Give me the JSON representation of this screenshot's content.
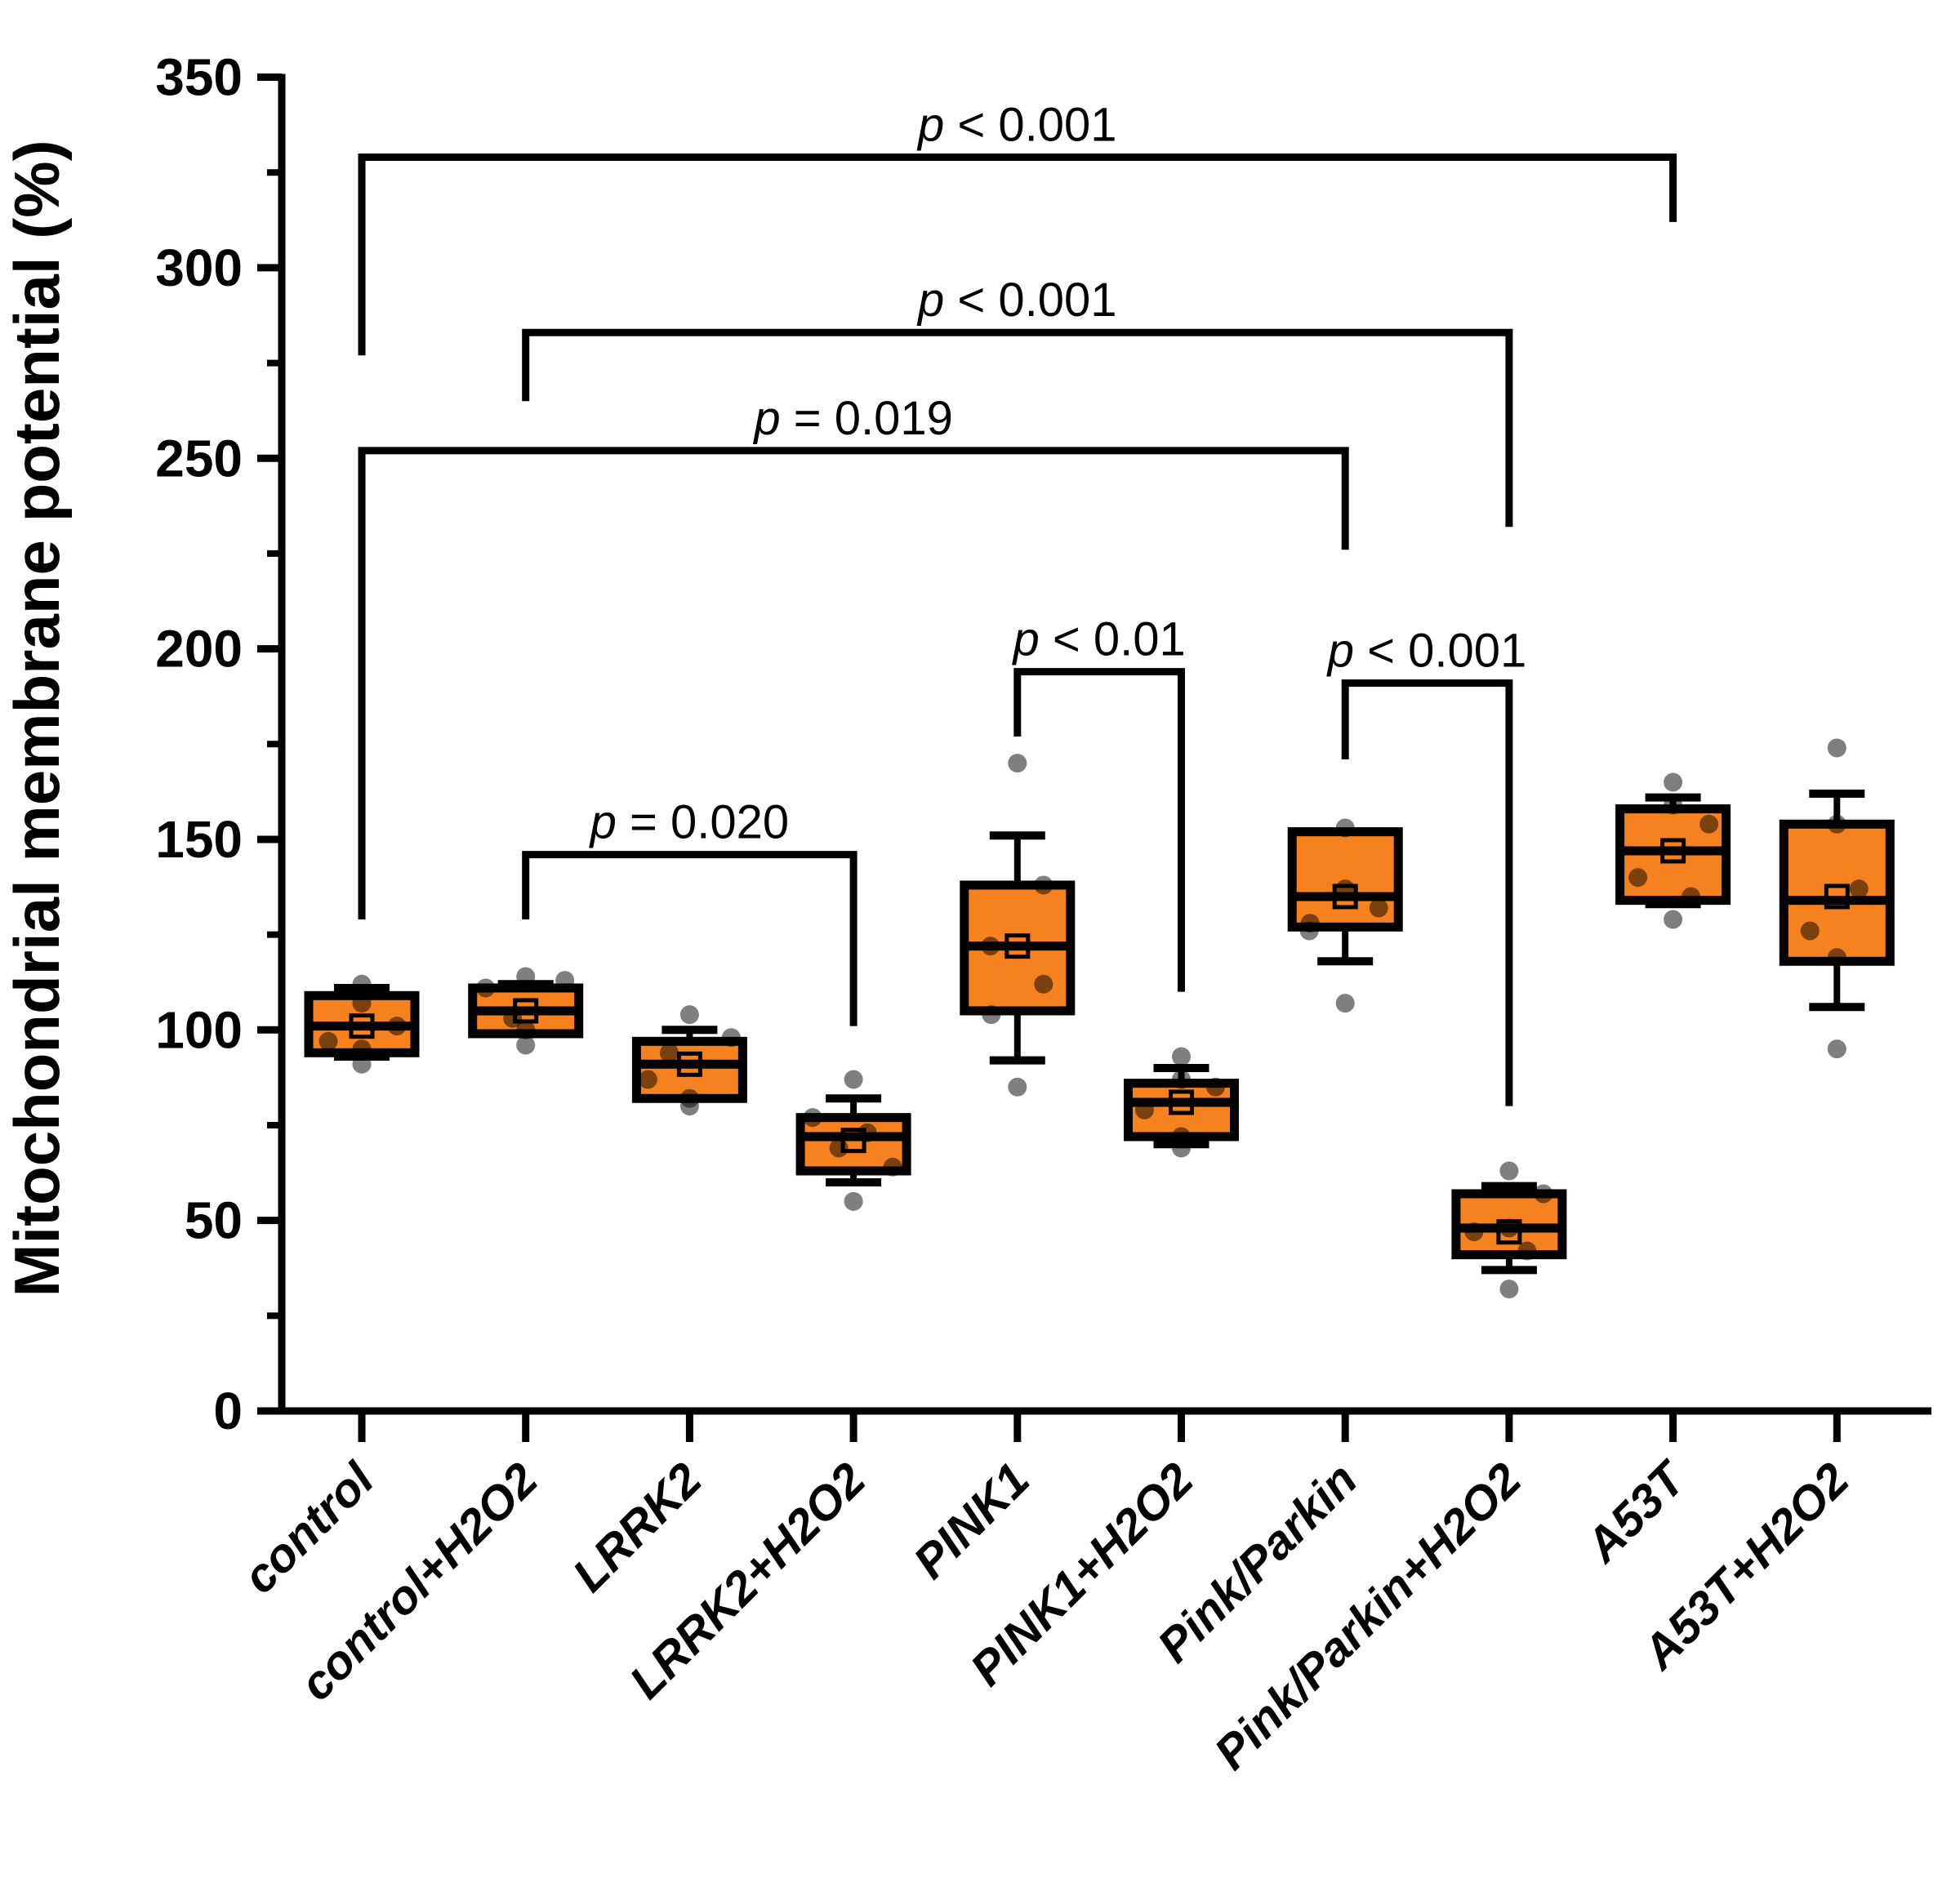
{
  "chart_data": {
    "type": "box",
    "title": "",
    "xlabel": "",
    "ylabel": "Mitochondrial membrane potential (%)",
    "ylim": [
      0,
      350
    ],
    "ytick_major_step": 50,
    "ytick_minor_step": 25,
    "ytick_labels": [
      "0",
      "50",
      "100",
      "150",
      "200",
      "250",
      "300",
      "350"
    ],
    "grid": false,
    "legend": "none",
    "categories": [
      "control",
      "control+H2O2",
      "LRRK2",
      "LRRK2+H2O2",
      "PINK1",
      "PINK1+H2O2",
      "Pink/Parkin",
      "Pink/Parkin+H2O2",
      "A53T",
      "A53T+H2O2"
    ],
    "colors": {
      "box_fill": "#F5821F",
      "line": "#000000",
      "point": "#000000",
      "point_opacity": 0.5,
      "background": "#FFFFFF"
    },
    "boxes": [
      {
        "category": "control",
        "whisker_low": 93,
        "q1": 94,
        "median": 101,
        "q3": 109,
        "whisker_high": 111,
        "mean": 101,
        "points": [
          {
            "v": 112,
            "dx": 0
          },
          {
            "v": 107,
            "dx": 0
          },
          {
            "v": 101,
            "dx": 43
          },
          {
            "v": 97,
            "dx": -41
          },
          {
            "v": 95,
            "dx": 0
          },
          {
            "v": 91,
            "dx": 0
          }
        ]
      },
      {
        "category": "control+H2O2",
        "whisker_low": 99,
        "q1": 99,
        "median": 105,
        "q3": 111,
        "whisker_high": 112,
        "mean": 105,
        "points": [
          {
            "v": 114,
            "dx": 0
          },
          {
            "v": 113,
            "dx": 48
          },
          {
            "v": 111,
            "dx": -49
          },
          {
            "v": 103,
            "dx": -16
          },
          {
            "v": 100,
            "dx": 0
          },
          {
            "v": 96,
            "dx": 0
          }
        ]
      },
      {
        "category": "LRRK2",
        "whisker_low": 82,
        "q1": 82,
        "median": 91,
        "q3": 97,
        "whisker_high": 100,
        "mean": 91,
        "points": [
          {
            "v": 104,
            "dx": 0
          },
          {
            "v": 98,
            "dx": 51
          },
          {
            "v": 94,
            "dx": -25
          },
          {
            "v": 87,
            "dx": -51
          },
          {
            "v": 82,
            "dx": 0
          },
          {
            "v": 80,
            "dx": 0
          }
        ]
      },
      {
        "category": "LRRK2+H2O2",
        "whisker_low": 60,
        "q1": 63,
        "median": 72,
        "q3": 77,
        "whisker_high": 82,
        "mean": 71,
        "points": [
          {
            "v": 87,
            "dx": 0
          },
          {
            "v": 77,
            "dx": -50
          },
          {
            "v": 73,
            "dx": 17
          },
          {
            "v": 69,
            "dx": -18
          },
          {
            "v": 64,
            "dx": 48
          },
          {
            "v": 55,
            "dx": 0
          }
        ]
      },
      {
        "category": "PINK1",
        "whisker_low": 92,
        "q1": 105,
        "median": 122,
        "q3": 138,
        "whisker_high": 151,
        "mean": 122,
        "points": [
          {
            "v": 170,
            "dx": 0
          },
          {
            "v": 138,
            "dx": 32
          },
          {
            "v": 122,
            "dx": -33
          },
          {
            "v": 112,
            "dx": 32
          },
          {
            "v": 104,
            "dx": -32
          },
          {
            "v": 85,
            "dx": 0
          }
        ]
      },
      {
        "category": "PINK1+H2O2",
        "whisker_low": 70,
        "q1": 72,
        "median": 81,
        "q3": 86,
        "whisker_high": 90,
        "mean": 81,
        "points": [
          {
            "v": 93,
            "dx": 0
          },
          {
            "v": 87,
            "dx": 0
          },
          {
            "v": 85,
            "dx": 42
          },
          {
            "v": 79,
            "dx": -45
          },
          {
            "v": 72,
            "dx": 0
          },
          {
            "v": 69,
            "dx": 0
          }
        ]
      },
      {
        "category": "Pink/Parkin",
        "whisker_low": 118,
        "q1": 127,
        "median": 135,
        "q3": 152,
        "whisker_high": 152,
        "mean": 135,
        "points": [
          {
            "v": 153,
            "dx": 0
          },
          {
            "v": 137,
            "dx": 0
          },
          {
            "v": 132,
            "dx": 41
          },
          {
            "v": 128,
            "dx": -43
          },
          {
            "v": 126,
            "dx": -44
          },
          {
            "v": 107,
            "dx": 0
          }
        ]
      },
      {
        "category": "Pink/Parkin+H2O2",
        "whisker_low": 37,
        "q1": 41,
        "median": 48,
        "q3": 57,
        "whisker_high": 59,
        "mean": 47,
        "points": [
          {
            "v": 63,
            "dx": 0
          },
          {
            "v": 57,
            "dx": 42
          },
          {
            "v": 48,
            "dx": 0
          },
          {
            "v": 47,
            "dx": -43
          },
          {
            "v": 42,
            "dx": 22
          },
          {
            "v": 32,
            "dx": 0
          }
        ]
      },
      {
        "category": "A53T",
        "whisker_low": 133,
        "q1": 134,
        "median": 147,
        "q3": 158,
        "whisker_high": 161,
        "mean": 147,
        "points": [
          {
            "v": 165,
            "dx": 0
          },
          {
            "v": 159,
            "dx": 0
          },
          {
            "v": 154,
            "dx": 44
          },
          {
            "v": 140,
            "dx": -43
          },
          {
            "v": 135,
            "dx": 22
          },
          {
            "v": 129,
            "dx": 0
          }
        ]
      },
      {
        "category": "A53T+H2O2",
        "whisker_low": 106,
        "q1": 118,
        "median": 134,
        "q3": 154,
        "whisker_high": 162,
        "mean": 135,
        "points": [
          {
            "v": 174,
            "dx": 0
          },
          {
            "v": 154,
            "dx": 0
          },
          {
            "v": 137,
            "dx": 27
          },
          {
            "v": 126,
            "dx": -33
          },
          {
            "v": 119,
            "dx": 0
          },
          {
            "v": 95,
            "dx": 0
          }
        ]
      }
    ],
    "significance_brackets": [
      {
        "from": 0,
        "to": 8,
        "label": "p < 0.001",
        "bar": 329,
        "left_drop": 277,
        "right_drop": 312
      },
      {
        "from": 1,
        "to": 7,
        "label": "p < 0.001",
        "bar": 283,
        "left_drop": 265,
        "right_drop": 232
      },
      {
        "from": 0,
        "to": 6,
        "label": "p = 0.019",
        "bar": 252,
        "left_drop": 129,
        "right_drop": 226
      },
      {
        "from": 4,
        "to": 5,
        "label": "p < 0.01",
        "bar": 194,
        "left_drop": 177,
        "right_drop": 110
      },
      {
        "from": 6,
        "to": 7,
        "label": "p < 0.001",
        "bar": 191,
        "left_drop": 171,
        "right_drop": 80
      },
      {
        "from": 1,
        "to": 3,
        "label": "p = 0.020",
        "bar": 146,
        "left_drop": 129,
        "right_drop": 101
      }
    ]
  }
}
